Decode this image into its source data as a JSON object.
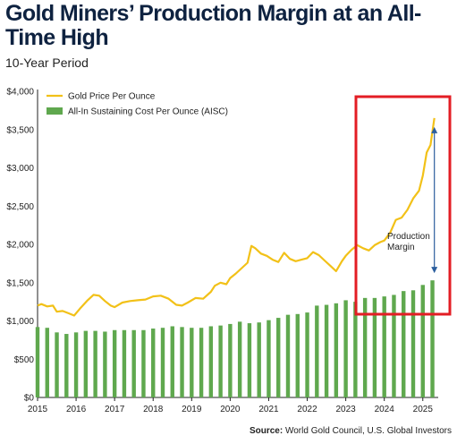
{
  "header": {
    "title": "Gold Miners’ Production Margin at an All-Time High",
    "subtitle": "10-Year Period"
  },
  "footer": {
    "source_label": "Source:",
    "source_text": "World Gold Council, U.S. Global Investors"
  },
  "colors": {
    "gold_line": "#f2c118",
    "aisc_bar": "#5fa84e",
    "highlight_box": "#e31d24",
    "arrow": "#2b5e9e"
  },
  "chart_data": {
    "type": "bar",
    "title": "Gold Miners’ Production Margin at an All-Time High",
    "subtitle": "10-Year Period",
    "ylim": [
      0,
      4000
    ],
    "y_ticks": [
      0,
      500,
      1000,
      1500,
      2000,
      2500,
      3000,
      3500,
      4000
    ],
    "y_tick_labels": [
      "$0",
      "$500",
      "$1,000",
      "$1,500",
      "$2,000",
      "$2,500",
      "$3,000",
      "$3,500",
      "$4,000"
    ],
    "x_range": [
      2015,
      2025.4
    ],
    "x_ticks": [
      2015,
      2016,
      2017,
      2018,
      2019,
      2020,
      2021,
      2022,
      2023,
      2024,
      2025
    ],
    "x_tick_labels": [
      "2015",
      "2016",
      "2017",
      "2018",
      "2019",
      "2020",
      "2021",
      "2022",
      "2023",
      "2024",
      "2025"
    ],
    "legend_position": "top-left",
    "series": [
      {
        "name": "Gold Price Per Ounce",
        "type": "line",
        "x": [
          2015.0,
          2015.1,
          2015.25,
          2015.4,
          2015.5,
          2015.65,
          2015.8,
          2015.95,
          2016.1,
          2016.3,
          2016.45,
          2016.6,
          2016.75,
          2016.9,
          2017.0,
          2017.2,
          2017.4,
          2017.6,
          2017.8,
          2018.0,
          2018.2,
          2018.4,
          2018.6,
          2018.75,
          2018.9,
          2019.1,
          2019.3,
          2019.5,
          2019.6,
          2019.75,
          2019.9,
          2020.0,
          2020.15,
          2020.3,
          2020.45,
          2020.55,
          2020.65,
          2020.8,
          2020.95,
          2021.1,
          2021.25,
          2021.4,
          2021.55,
          2021.7,
          2021.85,
          2022.0,
          2022.15,
          2022.3,
          2022.45,
          2022.6,
          2022.75,
          2022.9,
          2023.0,
          2023.15,
          2023.3,
          2023.45,
          2023.6,
          2023.75,
          2023.9,
          2024.0,
          2024.15,
          2024.3,
          2024.45,
          2024.6,
          2024.75,
          2024.9,
          2025.0,
          2025.1,
          2025.2,
          2025.3
        ],
        "values": [
          1200,
          1220,
          1190,
          1200,
          1120,
          1130,
          1100,
          1070,
          1160,
          1270,
          1340,
          1330,
          1260,
          1200,
          1180,
          1240,
          1260,
          1270,
          1280,
          1320,
          1330,
          1290,
          1210,
          1200,
          1240,
          1300,
          1290,
          1380,
          1460,
          1500,
          1480,
          1560,
          1620,
          1690,
          1760,
          1980,
          1950,
          1880,
          1850,
          1800,
          1770,
          1890,
          1810,
          1780,
          1800,
          1820,
          1900,
          1860,
          1790,
          1720,
          1650,
          1780,
          1850,
          1930,
          1990,
          1950,
          1920,
          1990,
          2030,
          2050,
          2150,
          2320,
          2350,
          2450,
          2600,
          2700,
          2900,
          3200,
          3300,
          3650
        ]
      },
      {
        "name": "All-In Sustaining Cost Per Ounce (AISC)",
        "type": "bar",
        "x": [
          2015.0,
          2015.25,
          2015.5,
          2015.75,
          2016.0,
          2016.25,
          2016.5,
          2016.75,
          2017.0,
          2017.25,
          2017.5,
          2017.75,
          2018.0,
          2018.25,
          2018.5,
          2018.75,
          2019.0,
          2019.25,
          2019.5,
          2019.75,
          2020.0,
          2020.25,
          2020.5,
          2020.75,
          2021.0,
          2021.25,
          2021.5,
          2021.75,
          2022.0,
          2022.25,
          2022.5,
          2022.75,
          2023.0,
          2023.25,
          2023.5,
          2023.75,
          2024.0,
          2024.25,
          2024.5,
          2024.75,
          2025.0,
          2025.25
        ],
        "values": [
          920,
          910,
          850,
          830,
          850,
          870,
          870,
          860,
          880,
          880,
          880,
          880,
          900,
          910,
          930,
          920,
          910,
          910,
          930,
          940,
          960,
          990,
          970,
          980,
          1010,
          1040,
          1080,
          1090,
          1110,
          1200,
          1210,
          1230,
          1270,
          1250,
          1300,
          1300,
          1320,
          1340,
          1390,
          1400,
          1470,
          1530
        ]
      }
    ],
    "annotations": [
      {
        "text_lines": [
          "Production",
          "Margin"
        ]
      }
    ]
  }
}
